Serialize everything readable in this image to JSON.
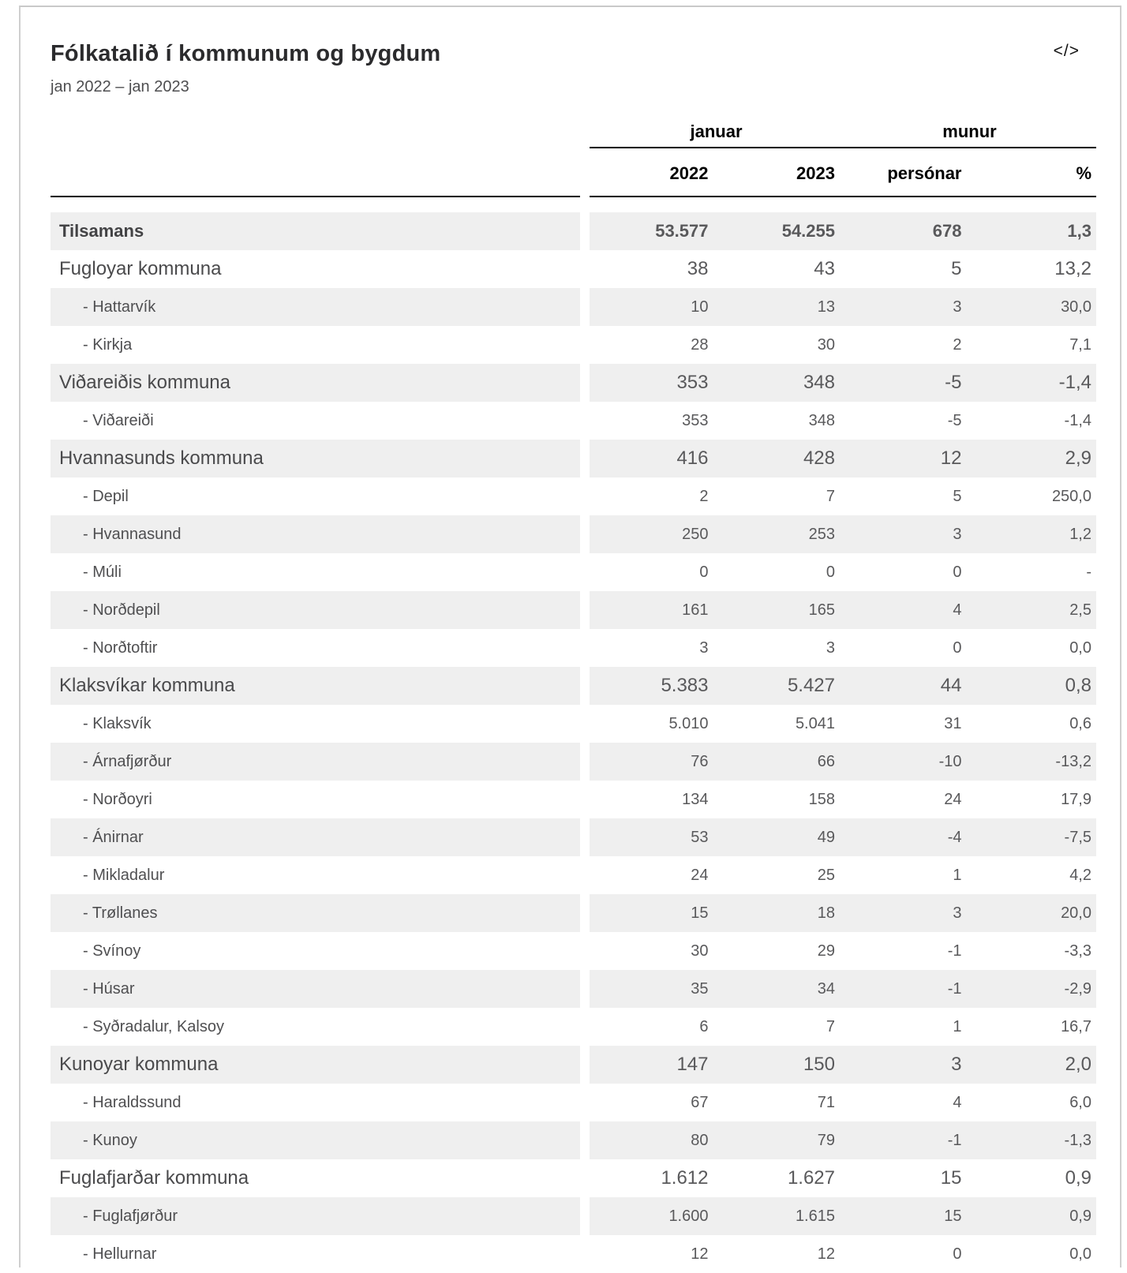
{
  "header": {
    "title": "Fólkatalið í kommunum og bygdum",
    "subtitle": "jan 2022 – jan 2023",
    "embed_icon": "</>"
  },
  "colors": {
    "stripe": "#efefef",
    "header_line": "#000000",
    "card_border": "#c9c9c9",
    "body_text": "#59595b"
  },
  "table": {
    "group_headers": [
      {
        "label": "januar",
        "span": 2
      },
      {
        "label": "munur",
        "span": 2
      }
    ],
    "columns": [
      "2022",
      "2023",
      "persónar",
      "%"
    ],
    "rows": [
      {
        "label": "Tilsamans",
        "type": "total",
        "values": [
          "53.577",
          "54.255",
          "678",
          "1,3"
        ]
      },
      {
        "label": "Fugloyar kommuna",
        "type": "kommuna",
        "values": [
          "38",
          "43",
          "5",
          "13,2"
        ]
      },
      {
        "label": "- Hattarvík",
        "type": "bygd",
        "values": [
          "10",
          "13",
          "3",
          "30,0"
        ]
      },
      {
        "label": "- Kirkja",
        "type": "bygd",
        "values": [
          "28",
          "30",
          "2",
          "7,1"
        ]
      },
      {
        "label": "Viðareiðis kommuna",
        "type": "kommuna",
        "values": [
          "353",
          "348",
          "-5",
          "-1,4"
        ]
      },
      {
        "label": "- Viðareiði",
        "type": "bygd",
        "values": [
          "353",
          "348",
          "-5",
          "-1,4"
        ]
      },
      {
        "label": "Hvannasunds kommuna",
        "type": "kommuna",
        "values": [
          "416",
          "428",
          "12",
          "2,9"
        ]
      },
      {
        "label": "- Depil",
        "type": "bygd",
        "values": [
          "2",
          "7",
          "5",
          "250,0"
        ]
      },
      {
        "label": "- Hvannasund",
        "type": "bygd",
        "values": [
          "250",
          "253",
          "3",
          "1,2"
        ]
      },
      {
        "label": "- Múli",
        "type": "bygd",
        "values": [
          "0",
          "0",
          "0",
          "-"
        ]
      },
      {
        "label": "- Norðdepil",
        "type": "bygd",
        "values": [
          "161",
          "165",
          "4",
          "2,5"
        ]
      },
      {
        "label": "- Norðtoftir",
        "type": "bygd",
        "values": [
          "3",
          "3",
          "0",
          "0,0"
        ]
      },
      {
        "label": "Klaksvíkar kommuna",
        "type": "kommuna",
        "values": [
          "5.383",
          "5.427",
          "44",
          "0,8"
        ]
      },
      {
        "label": "- Klaksvík",
        "type": "bygd",
        "values": [
          "5.010",
          "5.041",
          "31",
          "0,6"
        ]
      },
      {
        "label": "- Árnafjørður",
        "type": "bygd",
        "values": [
          "76",
          "66",
          "-10",
          "-13,2"
        ]
      },
      {
        "label": "- Norðoyri",
        "type": "bygd",
        "values": [
          "134",
          "158",
          "24",
          "17,9"
        ]
      },
      {
        "label": "- Ánirnar",
        "type": "bygd",
        "values": [
          "53",
          "49",
          "-4",
          "-7,5"
        ]
      },
      {
        "label": "- Mikladalur",
        "type": "bygd",
        "values": [
          "24",
          "25",
          "1",
          "4,2"
        ]
      },
      {
        "label": "- Trøllanes",
        "type": "bygd",
        "values": [
          "15",
          "18",
          "3",
          "20,0"
        ]
      },
      {
        "label": "- Svínoy",
        "type": "bygd",
        "values": [
          "30",
          "29",
          "-1",
          "-3,3"
        ]
      },
      {
        "label": "- Húsar",
        "type": "bygd",
        "values": [
          "35",
          "34",
          "-1",
          "-2,9"
        ]
      },
      {
        "label": "- Syðradalur, Kalsoy",
        "type": "bygd",
        "values": [
          "6",
          "7",
          "1",
          "16,7"
        ]
      },
      {
        "label": "Kunoyar kommuna",
        "type": "kommuna",
        "values": [
          "147",
          "150",
          "3",
          "2,0"
        ]
      },
      {
        "label": "- Haraldssund",
        "type": "bygd",
        "values": [
          "67",
          "71",
          "4",
          "6,0"
        ]
      },
      {
        "label": "- Kunoy",
        "type": "bygd",
        "values": [
          "80",
          "79",
          "-1",
          "-1,3"
        ]
      },
      {
        "label": "Fuglafjarðar kommuna",
        "type": "kommuna",
        "values": [
          "1.612",
          "1.627",
          "15",
          "0,9"
        ]
      },
      {
        "label": "- Fuglafjørður",
        "type": "bygd",
        "values": [
          "1.600",
          "1.615",
          "15",
          "0,9"
        ]
      },
      {
        "label": "- Hellurnar",
        "type": "bygd",
        "values": [
          "12",
          "12",
          "0",
          "0,0"
        ]
      }
    ]
  }
}
